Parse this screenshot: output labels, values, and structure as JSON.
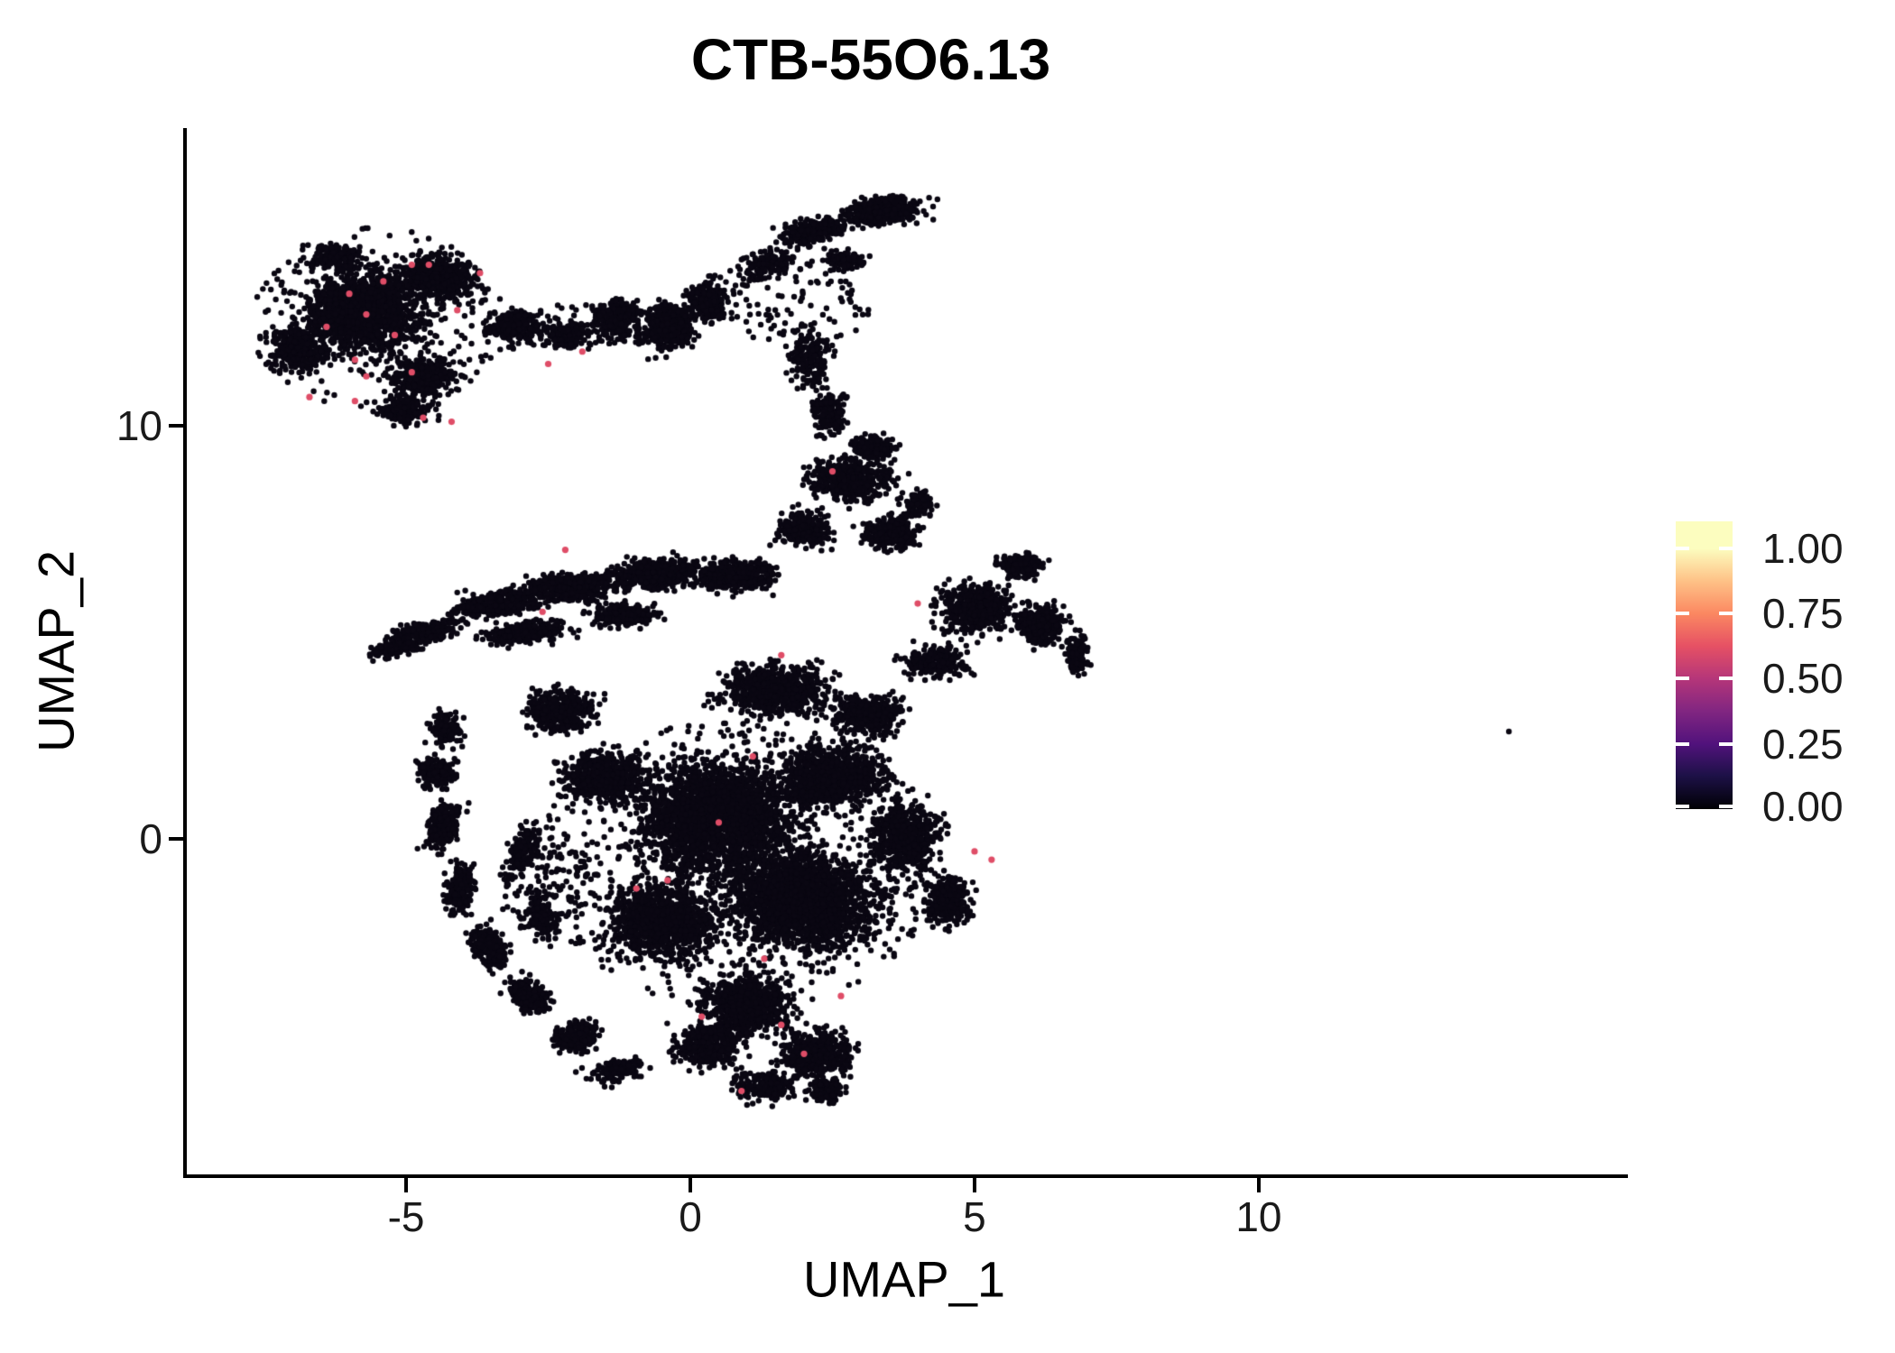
{
  "title": "CTB-55O6.13",
  "axes": {
    "x_label": "UMAP_1",
    "y_label": "UMAP_2",
    "x_ticks": [
      {
        "v": -5,
        "label": "-5"
      },
      {
        "v": 0,
        "label": "0"
      },
      {
        "v": 5,
        "label": "5"
      },
      {
        "v": 10,
        "label": "10"
      }
    ],
    "y_ticks": [
      {
        "v": 0,
        "label": "0"
      },
      {
        "v": 10,
        "label": "10"
      }
    ]
  },
  "colorbar": {
    "labels": [
      {
        "text": "1.00",
        "pos_pct": 9.4
      },
      {
        "text": "0.75",
        "pos_pct": 32.0
      },
      {
        "text": "0.50",
        "pos_pct": 54.5
      },
      {
        "text": "0.25",
        "pos_pct": 77.4
      },
      {
        "text": "0.00",
        "pos_pct": 99.0
      }
    ],
    "gradient_stops": [
      {
        "pos_pct": 0.0,
        "color": "#FCFDBF"
      },
      {
        "pos_pct": 9.4,
        "color": "#FCFDBF"
      },
      {
        "pos_pct": 20.7,
        "color": "#FEC287"
      },
      {
        "pos_pct": 32.0,
        "color": "#FB8861"
      },
      {
        "pos_pct": 43.3,
        "color": "#E65164"
      },
      {
        "pos_pct": 54.5,
        "color": "#B63679"
      },
      {
        "pos_pct": 65.8,
        "color": "#822681"
      },
      {
        "pos_pct": 77.4,
        "color": "#51127C"
      },
      {
        "pos_pct": 88.4,
        "color": "#1D1147"
      },
      {
        "pos_pct": 100.0,
        "color": "#000004"
      }
    ]
  },
  "chart_data": {
    "type": "scatter",
    "title": "CTB-55O6.13",
    "xlabel": "UMAP_1",
    "ylabel": "UMAP_2",
    "xlim": [
      -8.89,
      16.43
    ],
    "ylim": [
      -8.12,
      17.21
    ],
    "x_ticks": [
      -5,
      0,
      5,
      10
    ],
    "y_ticks": [
      0,
      10
    ],
    "grid": false,
    "legend": "colorbar right, feature expression 0.00-1.00, magma palette",
    "point_color_zero": "#0a0712",
    "point_color_high": "#df4d67",
    "point_radius_px": 3.2,
    "highlight_radius_px": 3.6,
    "clusters": [
      {
        "cx": -5.7,
        "cy": 12.8,
        "rx": 1.55,
        "ry": 1.6,
        "rot": 0,
        "n": 1500
      },
      {
        "cx": -4.4,
        "cy": 13.6,
        "rx": 1.0,
        "ry": 0.8,
        "rot": -20,
        "n": 450
      },
      {
        "cx": -6.9,
        "cy": 11.9,
        "rx": 0.8,
        "ry": 0.9,
        "rot": 0,
        "n": 300
      },
      {
        "cx": -4.7,
        "cy": 11.2,
        "rx": 1.0,
        "ry": 0.75,
        "rot": 10,
        "n": 350
      },
      {
        "cx": -6.3,
        "cy": 14.1,
        "rx": 0.75,
        "ry": 0.5,
        "rot": 0,
        "n": 170
      },
      {
        "cx": -5.0,
        "cy": 10.4,
        "rx": 0.8,
        "ry": 0.5,
        "rot": 0,
        "n": 180
      },
      {
        "cx": -5.5,
        "cy": 12.6,
        "rx": 2.3,
        "ry": 2.2,
        "rot": 0,
        "n": 250,
        "dist": "disk"
      },
      {
        "cx": -3.1,
        "cy": 12.4,
        "rx": 0.75,
        "ry": 0.6,
        "rot": 0,
        "n": 230
      },
      {
        "cx": -2.2,
        "cy": 12.2,
        "rx": 0.55,
        "ry": 0.5,
        "rot": 0,
        "n": 160
      },
      {
        "cx": -1.3,
        "cy": 12.6,
        "rx": 0.65,
        "ry": 0.7,
        "rot": 0,
        "n": 260
      },
      {
        "cx": -0.4,
        "cy": 12.4,
        "rx": 0.7,
        "ry": 0.95,
        "rot": 0,
        "n": 420
      },
      {
        "cx": 0.3,
        "cy": 13.0,
        "rx": 0.55,
        "ry": 0.8,
        "rot": 0,
        "n": 260
      },
      {
        "cx": -1.9,
        "cy": 12.4,
        "rx": 1.6,
        "ry": 0.55,
        "rot": 0,
        "n": 100,
        "dist": "disk"
      },
      {
        "cx": 1.3,
        "cy": 13.9,
        "rx": 0.85,
        "ry": 0.5,
        "rot": 25,
        "n": 130
      },
      {
        "cx": 2.2,
        "cy": 14.7,
        "rx": 0.95,
        "ry": 0.45,
        "rot": 18,
        "n": 280
      },
      {
        "cx": 3.4,
        "cy": 15.2,
        "rx": 1.05,
        "ry": 0.55,
        "rot": 8,
        "n": 420
      },
      {
        "cx": 2.7,
        "cy": 14.0,
        "rx": 0.55,
        "ry": 0.4,
        "rot": 0,
        "n": 110
      },
      {
        "cx": 1.9,
        "cy": 13.0,
        "rx": 1.3,
        "ry": 1.1,
        "rot": 0,
        "n": 110,
        "dist": "disk"
      },
      {
        "cx": 2.1,
        "cy": 11.6,
        "rx": 0.6,
        "ry": 1.1,
        "rot": 0,
        "n": 170
      },
      {
        "cx": 2.45,
        "cy": 10.3,
        "rx": 0.55,
        "ry": 0.85,
        "rot": 0,
        "n": 160
      },
      {
        "cx": 2.8,
        "cy": 8.7,
        "rx": 1.15,
        "ry": 0.8,
        "rot": 0,
        "n": 520
      },
      {
        "cx": 2.0,
        "cy": 7.5,
        "rx": 0.8,
        "ry": 0.7,
        "rot": 0,
        "n": 300
      },
      {
        "cx": 3.5,
        "cy": 7.4,
        "rx": 0.75,
        "ry": 0.6,
        "rot": 0,
        "n": 260
      },
      {
        "cx": 3.2,
        "cy": 9.5,
        "rx": 0.65,
        "ry": 0.45,
        "rot": 0,
        "n": 150
      },
      {
        "cx": 4.0,
        "cy": 8.1,
        "rx": 0.45,
        "ry": 0.55,
        "rot": 0,
        "n": 110
      },
      {
        "cx": -4.7,
        "cy": 5.0,
        "rx": 1.0,
        "ry": 0.4,
        "rot": 14,
        "n": 260
      },
      {
        "cx": -3.4,
        "cy": 5.7,
        "rx": 1.3,
        "ry": 0.5,
        "rot": 11,
        "n": 420
      },
      {
        "cx": -2.0,
        "cy": 6.1,
        "rx": 1.3,
        "ry": 0.55,
        "rot": 7,
        "n": 470
      },
      {
        "cx": -0.6,
        "cy": 6.4,
        "rx": 1.2,
        "ry": 0.6,
        "rot": 4,
        "n": 470
      },
      {
        "cx": 0.8,
        "cy": 6.4,
        "rx": 1.05,
        "ry": 0.65,
        "rot": 0,
        "n": 420
      },
      {
        "cx": -2.9,
        "cy": 5.0,
        "rx": 1.2,
        "ry": 0.4,
        "rot": 9,
        "n": 260
      },
      {
        "cx": -1.2,
        "cy": 5.4,
        "rx": 1.0,
        "ry": 0.45,
        "rot": 0,
        "n": 260
      },
      {
        "cx": -5.2,
        "cy": 4.6,
        "rx": 0.7,
        "ry": 0.3,
        "rot": 16,
        "n": 120
      },
      {
        "cx": 5.0,
        "cy": 5.6,
        "rx": 1.05,
        "ry": 0.95,
        "rot": 0,
        "n": 520
      },
      {
        "cx": 6.2,
        "cy": 5.2,
        "rx": 0.7,
        "ry": 0.75,
        "rot": 0,
        "n": 260
      },
      {
        "cx": 4.3,
        "cy": 4.3,
        "rx": 0.85,
        "ry": 0.65,
        "rot": 0,
        "n": 260
      },
      {
        "cx": 5.8,
        "cy": 6.6,
        "rx": 0.6,
        "ry": 0.45,
        "rot": 0,
        "n": 150
      },
      {
        "cx": 6.8,
        "cy": 4.5,
        "rx": 0.35,
        "ry": 0.8,
        "rot": 0,
        "n": 110
      },
      {
        "cx": 0.5,
        "cy": 0.5,
        "rx": 2.2,
        "ry": 2.2,
        "rot": 0,
        "n": 2400
      },
      {
        "cx": 2.0,
        "cy": -1.5,
        "rx": 2.0,
        "ry": 1.8,
        "rot": 0,
        "n": 2100
      },
      {
        "cx": -0.5,
        "cy": -2.0,
        "rx": 1.5,
        "ry": 1.5,
        "rot": 0,
        "n": 1100
      },
      {
        "cx": 2.5,
        "cy": 1.5,
        "rx": 1.5,
        "ry": 1.2,
        "rot": 0,
        "n": 850
      },
      {
        "cx": 1.0,
        "cy": -4.0,
        "rx": 1.3,
        "ry": 1.2,
        "rot": 0,
        "n": 750
      },
      {
        "cx": 2.2,
        "cy": -5.2,
        "rx": 0.95,
        "ry": 0.9,
        "rot": 0,
        "n": 480
      },
      {
        "cx": 2.4,
        "cy": -6.1,
        "rx": 0.5,
        "ry": 0.45,
        "rot": 0,
        "n": 160
      },
      {
        "cx": 3.8,
        "cy": 0.0,
        "rx": 1.0,
        "ry": 1.4,
        "rot": 0,
        "n": 560
      },
      {
        "cx": 4.5,
        "cy": -1.5,
        "rx": 0.7,
        "ry": 0.95,
        "rot": 0,
        "n": 300
      },
      {
        "cx": -1.5,
        "cy": 1.5,
        "rx": 1.2,
        "ry": 1.0,
        "rot": 0,
        "n": 560
      },
      {
        "cx": -2.3,
        "cy": 3.1,
        "rx": 1.0,
        "ry": 0.85,
        "rot": 0,
        "n": 380
      },
      {
        "cx": 1.5,
        "cy": 3.6,
        "rx": 1.5,
        "ry": 1.0,
        "rot": 0,
        "n": 650
      },
      {
        "cx": 3.1,
        "cy": 3.0,
        "rx": 1.0,
        "ry": 0.8,
        "rot": 0,
        "n": 380
      },
      {
        "cx": 0.9,
        "cy": -0.6,
        "rx": 3.6,
        "ry": 3.5,
        "rot": 0,
        "n": 650,
        "dist": "disk"
      },
      {
        "cx": -4.35,
        "cy": 0.3,
        "rx": 0.45,
        "ry": 0.95,
        "rot": -12,
        "n": 260
      },
      {
        "cx": -4.05,
        "cy": -1.2,
        "rx": 0.4,
        "ry": 0.95,
        "rot": -6,
        "n": 260
      },
      {
        "cx": -3.55,
        "cy": -2.6,
        "rx": 0.45,
        "ry": 0.85,
        "rot": 18,
        "n": 260
      },
      {
        "cx": -2.85,
        "cy": -3.8,
        "rx": 0.5,
        "ry": 0.7,
        "rot": 35,
        "n": 240
      },
      {
        "cx": -2.0,
        "cy": -4.8,
        "rx": 0.65,
        "ry": 0.5,
        "rot": 45,
        "n": 200
      },
      {
        "cx": -4.45,
        "cy": 1.6,
        "rx": 0.5,
        "ry": 0.6,
        "rot": 0,
        "n": 190
      },
      {
        "cx": -4.3,
        "cy": 2.7,
        "rx": 0.5,
        "ry": 0.7,
        "rot": 0,
        "n": 130
      },
      {
        "cx": -2.95,
        "cy": -0.3,
        "rx": 0.35,
        "ry": 1.0,
        "rot": -10,
        "n": 150
      },
      {
        "cx": -2.6,
        "cy": -1.9,
        "rx": 0.35,
        "ry": 0.85,
        "rot": 12,
        "n": 140
      },
      {
        "cx": -2.6,
        "cy": -1.0,
        "rx": 0.9,
        "ry": 1.3,
        "rot": 0,
        "n": 130,
        "dist": "disk"
      },
      {
        "cx": -1.3,
        "cy": -5.6,
        "rx": 0.9,
        "ry": 0.5,
        "rot": 20,
        "n": 130
      },
      {
        "cx": 0.3,
        "cy": -5.0,
        "rx": 1.0,
        "ry": 0.8,
        "rot": 0,
        "n": 330
      },
      {
        "cx": 1.3,
        "cy": -6.0,
        "rx": 0.8,
        "ry": 0.55,
        "rot": 0,
        "n": 220
      }
    ],
    "highlight_points": [
      [
        -4.9,
        13.9
      ],
      [
        -4.6,
        13.9
      ],
      [
        -3.7,
        13.7
      ],
      [
        -5.4,
        13.5
      ],
      [
        -6.0,
        13.2
      ],
      [
        -4.1,
        12.8
      ],
      [
        -5.7,
        12.7
      ],
      [
        -6.4,
        12.4
      ],
      [
        -5.2,
        12.2
      ],
      [
        -2.5,
        11.5
      ],
      [
        -5.9,
        11.6
      ],
      [
        -5.7,
        11.2
      ],
      [
        -4.9,
        11.3
      ],
      [
        -6.7,
        10.7
      ],
      [
        -5.9,
        10.6
      ],
      [
        -4.7,
        10.2
      ],
      [
        -4.2,
        10.1
      ],
      [
        -1.9,
        11.8
      ],
      [
        -2.2,
        7.0
      ],
      [
        -2.6,
        5.5
      ],
      [
        1.6,
        4.45
      ],
      [
        2.5,
        8.9
      ],
      [
        4.0,
        5.7
      ],
      [
        0.5,
        0.4
      ],
      [
        5.0,
        -0.3
      ],
      [
        -0.4,
        -1.0
      ],
      [
        -0.95,
        -1.2
      ],
      [
        1.1,
        2.0
      ],
      [
        1.3,
        -2.9
      ],
      [
        2.65,
        -3.8
      ],
      [
        0.2,
        -4.3
      ],
      [
        1.6,
        -4.5
      ],
      [
        2.0,
        -5.2
      ],
      [
        0.9,
        -6.1
      ],
      [
        5.3,
        -0.5
      ]
    ],
    "outlier_points": [
      [
        14.4,
        2.6
      ]
    ]
  }
}
